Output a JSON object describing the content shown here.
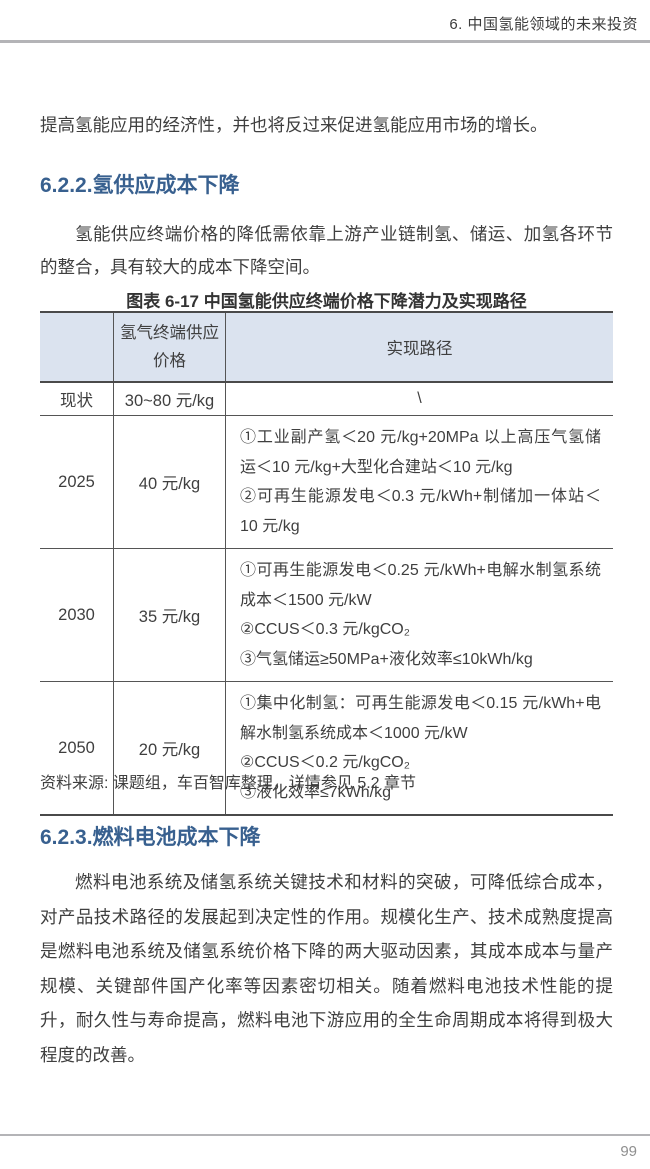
{
  "header": {
    "title": "6. 中国氢能领域的未来投资"
  },
  "footer": {
    "page_number": "99"
  },
  "intro_text": "提高氢能应用的经济性，并也将反过来促进氢能应用市场的增长。",
  "section_622": {
    "heading": "6.2.2.氢供应成本下降",
    "paragraph": "氢能供应终端价格的降低需依靠上游产业链制氢、储运、加氢各环节的整合，具有较大的成本下降空间。"
  },
  "table": {
    "caption": "图表 6-17 中国氢能供应终端价格下降潜力及实现路径",
    "header": {
      "col1": "",
      "col2_line1": "氢气终端供应",
      "col2_line2": "价格",
      "col3": "实现路径"
    },
    "rows": [
      {
        "stage": "现状",
        "price": "30~80 元/kg",
        "paths": [
          "\\"
        ]
      },
      {
        "stage": "2025",
        "price": "40 元/kg",
        "paths": [
          "①工业副产氢＜20 元/kg+20MPa 以上高压气氢储运＜10 元/kg+大型化合建站＜10 元/kg",
          "②可再生能源发电＜0.3 元/kWh+制储加一体站＜10 元/kg"
        ]
      },
      {
        "stage": "2030",
        "price": "35 元/kg",
        "paths": [
          "①可再生能源发电＜0.25 元/kWh+电解水制氢系统成本＜1500 元/kW",
          "②CCUS＜0.3 元/kgCO₂",
          "③气氢储运≥50MPa+液化效率≤10kWh/kg"
        ]
      },
      {
        "stage": "2050",
        "price": "20 元/kg",
        "paths": [
          "①集中化制氢：可再生能源发电＜0.15 元/kWh+电解水制氢系统成本＜1000 元/kW",
          "②CCUS＜0.2 元/kgCO₂",
          "③液化效率≤7kWh/kg"
        ]
      }
    ],
    "source": "资料来源: 课题组，车百智库整理，详情参见 5.2 章节"
  },
  "section_623": {
    "heading": "6.2.3.燃料电池成本下降",
    "paragraph": "燃料电池系统及储氢系统关键技术和材料的突破，可降低综合成本，对产品技术路径的发展起到决定性的作用。规模化生产、技术成熟度提高是燃料电池系统及储氢系统价格下降的两大驱动因素，其成本成本与量产规模、关键部件国产化率等因素密切相关。随着燃料电池技术性能的提升，耐久性与寿命提高，燃料电池下游应用的全生命周期成本将得到极大程度的改善。"
  },
  "colors": {
    "heading_accent": "#38608f",
    "table_header_bg": "#dbe3ef",
    "rule_gray": "#b4b4b7"
  }
}
